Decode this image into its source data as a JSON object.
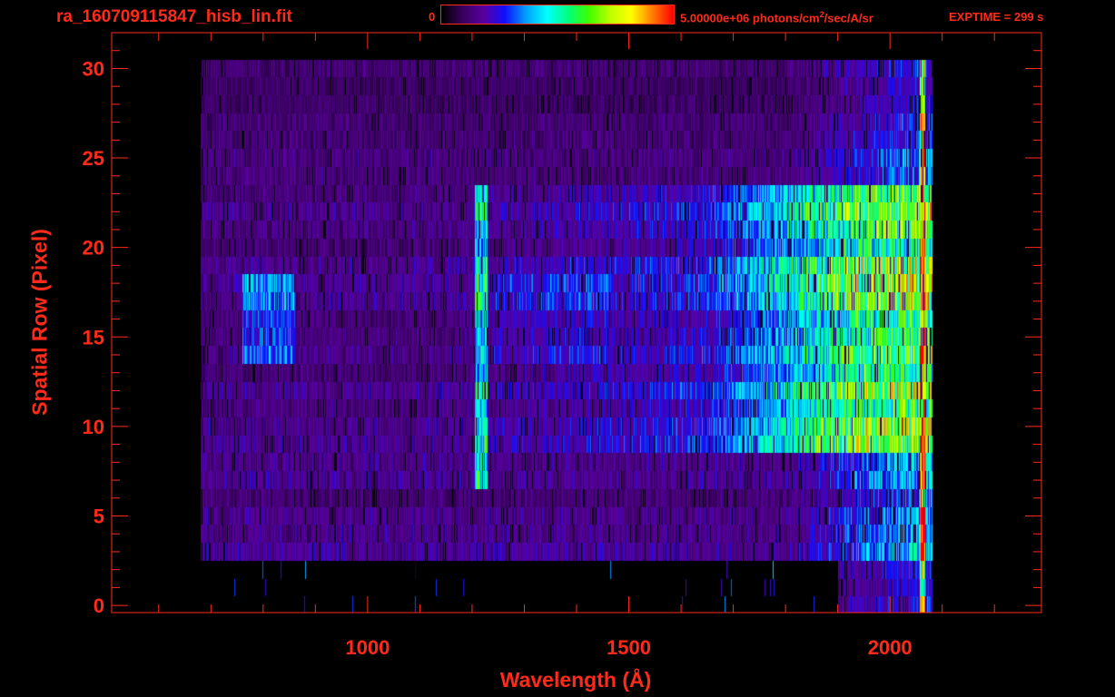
{
  "header": {
    "title": "ra_160709115847_hisb_lin.fit",
    "colorbar_min": "0",
    "colorbar_max_prefix": "5.00000e+06 photons/cm",
    "colorbar_max_sup": "2",
    "colorbar_max_suffix": "/sec/A/sr",
    "exptime": "EXPTIME = 299 s"
  },
  "colors": {
    "axis": "#ff2a1a",
    "background": "#000000",
    "colormap": [
      "#000000",
      "#3a0060",
      "#5a00a0",
      "#1010ff",
      "#00a0ff",
      "#00ffff",
      "#00ff80",
      "#40ff00",
      "#c0ff00",
      "#ffff00",
      "#ff8000",
      "#ff0000"
    ]
  },
  "chart_data": {
    "type": "heatmap",
    "title": "ra_160709115847_hisb_lin.fit",
    "xlabel": "Wavelength (Å)",
    "ylabel": "Spatial Row (Pixel)",
    "xlim": [
      510,
      2290
    ],
    "ylim": [
      -0.4,
      32
    ],
    "xticks": [
      1000,
      1500,
      2000
    ],
    "yticks": [
      0,
      5,
      10,
      15,
      20,
      25,
      30
    ],
    "x_minor_step": 100,
    "y_minor_step": 1,
    "grid": false,
    "colorbar": {
      "min": 0,
      "max": 5000000,
      "units": "photons/cm^2/sec/A/sr",
      "placement": "top"
    },
    "data_extent": {
      "wavelength_min": 680,
      "wavelength_max": 2080,
      "row_min": 0,
      "row_max": 30
    },
    "features": [
      {
        "name": "Lyman-alpha line",
        "wavelength": 1216,
        "rows": [
          7,
          23
        ]
      },
      {
        "name": "bright continuum",
        "wavelength_range": [
          1650,
          2060
        ],
        "rows": [
          9,
          23
        ]
      },
      {
        "name": "detector edge",
        "wavelength": 2062,
        "rows": [
          2,
          30
        ]
      }
    ]
  }
}
